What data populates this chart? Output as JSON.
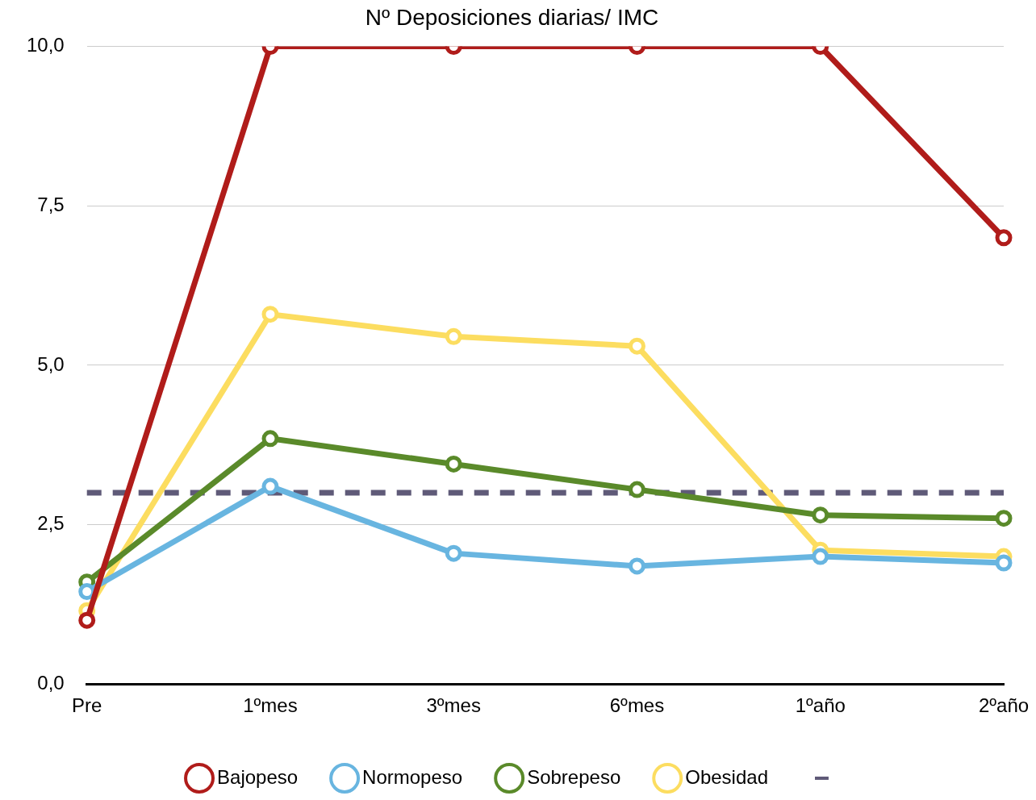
{
  "chart_data": {
    "type": "line",
    "title": "Nº Deposiciones diarias/ IMC",
    "categories": [
      "Pre",
      "1ºmes",
      "3ºmes",
      "6ºmes",
      "1ºaño",
      "2ºaño"
    ],
    "series": [
      {
        "name": "Bajopeso",
        "color": "#b01c1a",
        "values": [
          1.0,
          10.0,
          10.0,
          10.0,
          10.0,
          7.0
        ]
      },
      {
        "name": "Normopeso",
        "color": "#68b5e0",
        "values": [
          1.45,
          3.1,
          2.05,
          1.85,
          2.0,
          1.9
        ]
      },
      {
        "name": "Sobrepeso",
        "color": "#5a8a2a",
        "values": [
          1.6,
          3.85,
          3.45,
          3.05,
          2.65,
          2.6
        ]
      },
      {
        "name": "Obesidad",
        "color": "#fcdd60",
        "values": [
          1.15,
          5.8,
          5.45,
          5.3,
          2.1,
          2.0
        ]
      }
    ],
    "ref_lines": [
      {
        "axis": "y",
        "value": 3.0,
        "color": "#5f5a78",
        "line_style": "dashed"
      }
    ],
    "ylim": [
      0,
      10
    ],
    "yticks": [
      {
        "value": 0,
        "label": "0,0"
      },
      {
        "value": 2.5,
        "label": "2,5"
      },
      {
        "value": 5,
        "label": "5,0"
      },
      {
        "value": 7.5,
        "label": "7,5"
      },
      {
        "value": 10,
        "label": "10,0"
      }
    ],
    "grid": "y",
    "legend": "bottom",
    "marker": "circle",
    "line_style": "solid"
  }
}
